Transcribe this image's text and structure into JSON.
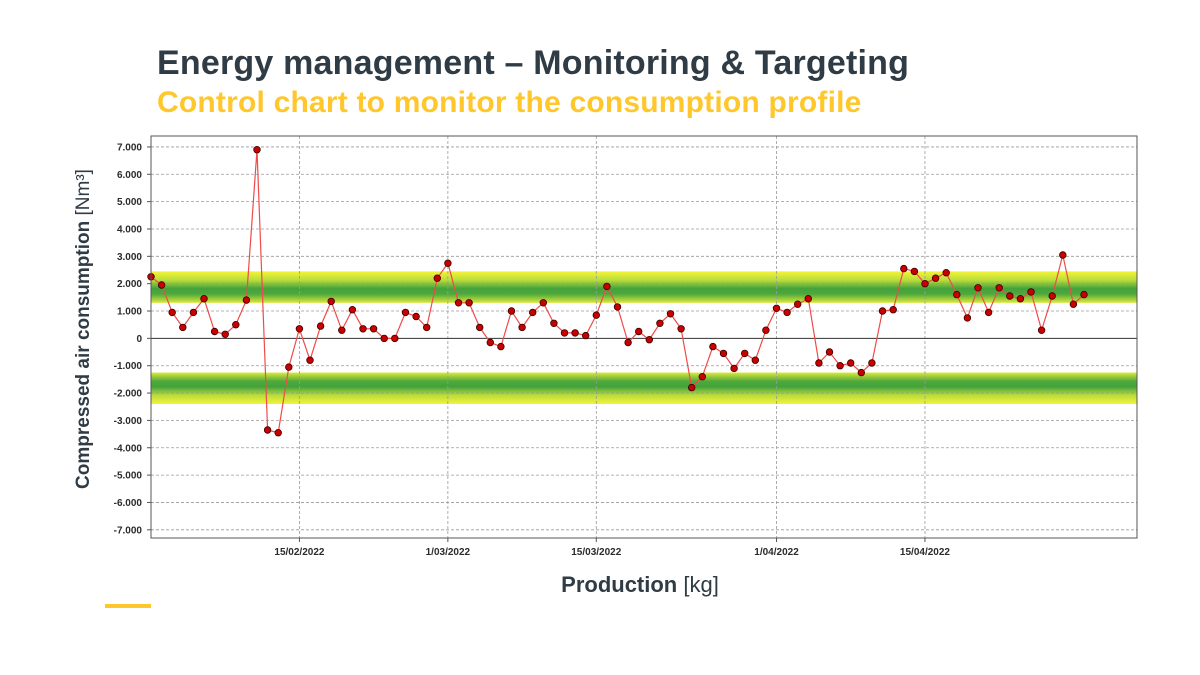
{
  "header": {
    "title": "Energy management – Monitoring & Targeting",
    "subtitle": "Control chart to monitor the consumption profile"
  },
  "colors": {
    "title": "#2f3b45",
    "accent": "#ffc72c",
    "series_line": "#f04a4a",
    "series_marker": "#c80000",
    "band_outer": "#f2f23c",
    "band_inner": "#3f9f3a"
  },
  "chart_data": {
    "type": "line",
    "ylabel_name": "Compressed air consumption",
    "ylabel_unit": "[Nm³]",
    "xlabel_name": "Production",
    "xlabel_unit": "[kg]",
    "ylim": [
      -7300,
      7400
    ],
    "xlim": [
      "2022-02-01",
      "2022-05-05"
    ],
    "y_ticks": [
      7000,
      6000,
      5000,
      4000,
      3000,
      2000,
      1000,
      0,
      -1000,
      -2000,
      -3000,
      -4000,
      -5000,
      -6000,
      -7000
    ],
    "y_tick_labels": [
      "7.000",
      "6.000",
      "5.000",
      "4.000",
      "3.000",
      "2.000",
      "1.000",
      "0",
      "-1.000",
      "-2.000",
      "-3.000",
      "-4.000",
      "-5.000",
      "-6.000",
      "-7.000"
    ],
    "x_ticks": [
      "2022-02-15",
      "2022-03-01",
      "2022-03-15",
      "2022-04-01",
      "2022-04-15"
    ],
    "x_tick_labels": [
      "15/02/2022",
      "1/03/2022",
      "15/03/2022",
      "1/04/2022",
      "15/04/2022"
    ],
    "grid": true,
    "zero_line": true,
    "control_bands": [
      {
        "from": 1300,
        "to": 2450
      },
      {
        "from": -2400,
        "to": -1250
      }
    ],
    "series": [
      {
        "x": [
          "2022-02-01",
          "2022-02-02",
          "2022-02-03",
          "2022-02-04",
          "2022-02-05",
          "2022-02-06",
          "2022-02-07",
          "2022-02-08",
          "2022-02-09",
          "2022-02-10",
          "2022-02-11",
          "2022-02-12",
          "2022-02-13",
          "2022-02-14",
          "2022-02-15",
          "2022-02-16",
          "2022-02-17",
          "2022-02-18",
          "2022-02-19",
          "2022-02-20",
          "2022-02-21",
          "2022-02-22",
          "2022-02-23",
          "2022-02-24",
          "2022-02-25",
          "2022-02-26",
          "2022-02-27",
          "2022-02-28",
          "2022-03-01",
          "2022-03-02",
          "2022-03-03",
          "2022-03-04",
          "2022-03-05",
          "2022-03-06",
          "2022-03-07",
          "2022-03-08",
          "2022-03-09",
          "2022-03-10",
          "2022-03-11",
          "2022-03-12",
          "2022-03-13",
          "2022-03-14",
          "2022-03-15",
          "2022-03-16",
          "2022-03-17",
          "2022-03-18",
          "2022-03-19",
          "2022-03-20",
          "2022-03-21",
          "2022-03-22",
          "2022-03-23",
          "2022-03-24",
          "2022-03-25",
          "2022-03-26",
          "2022-03-27",
          "2022-03-28",
          "2022-03-29",
          "2022-03-30",
          "2022-03-31",
          "2022-04-01",
          "2022-04-02",
          "2022-04-03",
          "2022-04-04",
          "2022-04-05",
          "2022-04-06",
          "2022-04-07",
          "2022-04-08",
          "2022-04-09",
          "2022-04-10",
          "2022-04-11",
          "2022-04-12",
          "2022-04-13",
          "2022-04-14",
          "2022-04-15",
          "2022-04-16",
          "2022-04-17",
          "2022-04-18",
          "2022-04-19",
          "2022-04-20",
          "2022-04-21",
          "2022-04-22",
          "2022-04-23",
          "2022-04-24",
          "2022-04-25",
          "2022-04-26",
          "2022-04-27",
          "2022-04-28",
          "2022-04-29",
          "2022-04-30"
        ],
        "y": [
          2250,
          1950,
          950,
          400,
          950,
          1450,
          250,
          150,
          500,
          1400,
          6900,
          -3350,
          -3450,
          -1050,
          350,
          -800,
          450,
          1350,
          300,
          1050,
          350,
          350,
          0,
          0,
          950,
          800,
          400,
          2200,
          2750,
          1300,
          1300,
          400,
          -150,
          -300,
          1000,
          400,
          950,
          1300,
          550,
          200,
          200,
          100,
          850,
          1900,
          1150,
          -150,
          250,
          -50,
          550,
          900,
          350,
          -1800,
          -1400,
          -300,
          -550,
          -1100,
          -550,
          -800,
          300,
          1100,
          950,
          1250,
          1450,
          -900,
          -500,
          -1000,
          -900,
          -1250,
          -900,
          1000,
          1050,
          2550,
          2450,
          2000,
          2200,
          2400,
          1600,
          750,
          1850,
          950,
          1850,
          1550,
          1450,
          1700,
          300,
          1550,
          3050,
          1250,
          1600
        ]
      }
    ]
  }
}
